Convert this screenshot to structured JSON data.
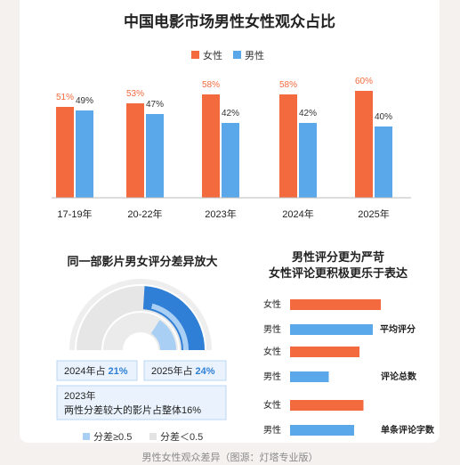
{
  "caption": "男性女性观众差异（图源：灯塔专业版）",
  "colors": {
    "female": "#f26a3d",
    "male": "#5aa7ea",
    "accent_blue": "#2f7fd6",
    "donut_bg": "#e8e8e8",
    "donut_light": "#a9cff4",
    "box_bg": "#eaf3fd"
  },
  "chart_data": [
    {
      "type": "bar",
      "title": "中国电影市场男性女性观众占比",
      "categories": [
        "17-19年",
        "20-22年",
        "2023年",
        "2024年",
        "2025年"
      ],
      "series": [
        {
          "name": "女性",
          "values": [
            51,
            53,
            58,
            58,
            60
          ],
          "labels": [
            "51%",
            "53%",
            "58%",
            "58%",
            "60%"
          ]
        },
        {
          "name": "男性",
          "values": [
            49,
            47,
            42,
            42,
            40
          ],
          "labels": [
            "49%",
            "47%",
            "42%",
            "42%",
            "40%"
          ]
        }
      ],
      "ylim": [
        0,
        100
      ],
      "legend": "top-center",
      "grid": false
    },
    {
      "type": "pie",
      "title": "同一部影片男女评分差异放大",
      "series": [
        {
          "name": "2024年",
          "values": [
            21,
            79
          ]
        },
        {
          "name": "2025年",
          "values": [
            24,
            76
          ]
        }
      ],
      "legend_labels": [
        "分差≥0.5",
        "分差＜0.5"
      ],
      "annotations": {
        "y2024": "2024年占 ",
        "y2024_value": "21%",
        "y2025": "2025年占 ",
        "y2025_value": "24%",
        "y2023_line1": "2023年",
        "y2023_line2": "两性分差较大的影片占整体16%"
      }
    },
    {
      "type": "bar",
      "orientation": "horizontal",
      "title_line1": "男性评分更为严苛",
      "title_line2": "女性评论更积极更乐于表达",
      "groups": [
        {
          "label": "平均评分",
          "female_label": "女性",
          "male_label": "男性",
          "female": 0.68,
          "male": 0.62
        },
        {
          "label": "评论总数",
          "female_label": "女性",
          "male_label": "男性",
          "female": 0.52,
          "male": 0.29
        },
        {
          "label": "单条评论字数",
          "female_label": "女性",
          "male_label": "男性",
          "female": 0.55,
          "male": 0.48
        }
      ]
    }
  ]
}
